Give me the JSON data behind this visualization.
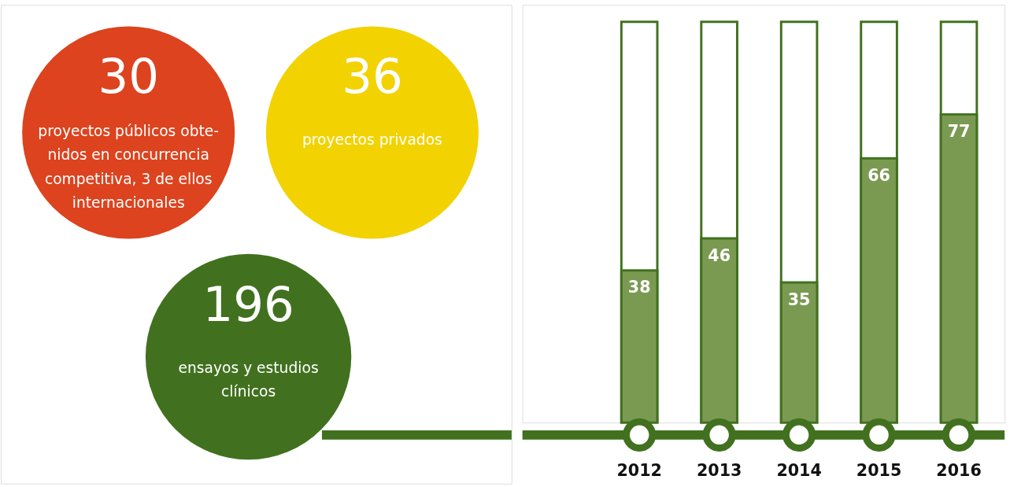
{
  "chart_data": [
    {
      "type": "other",
      "annotations": [
        "30",
        "proyectos públicos obte-\nnidos en concurrencia\ncompetitiva, 3 de ellos\ninternacionales",
        "36",
        "proyectos privados",
        "196",
        "ensayos y estudios\nclínicos"
      ]
    },
    {
      "type": "bar",
      "categories": [
        "2012",
        "2013",
        "2014",
        "2015",
        "2016"
      ],
      "values": [
        38,
        46,
        35,
        66,
        77
      ],
      "color": "#7a9a52",
      "data_labels": true
    }
  ]
}
